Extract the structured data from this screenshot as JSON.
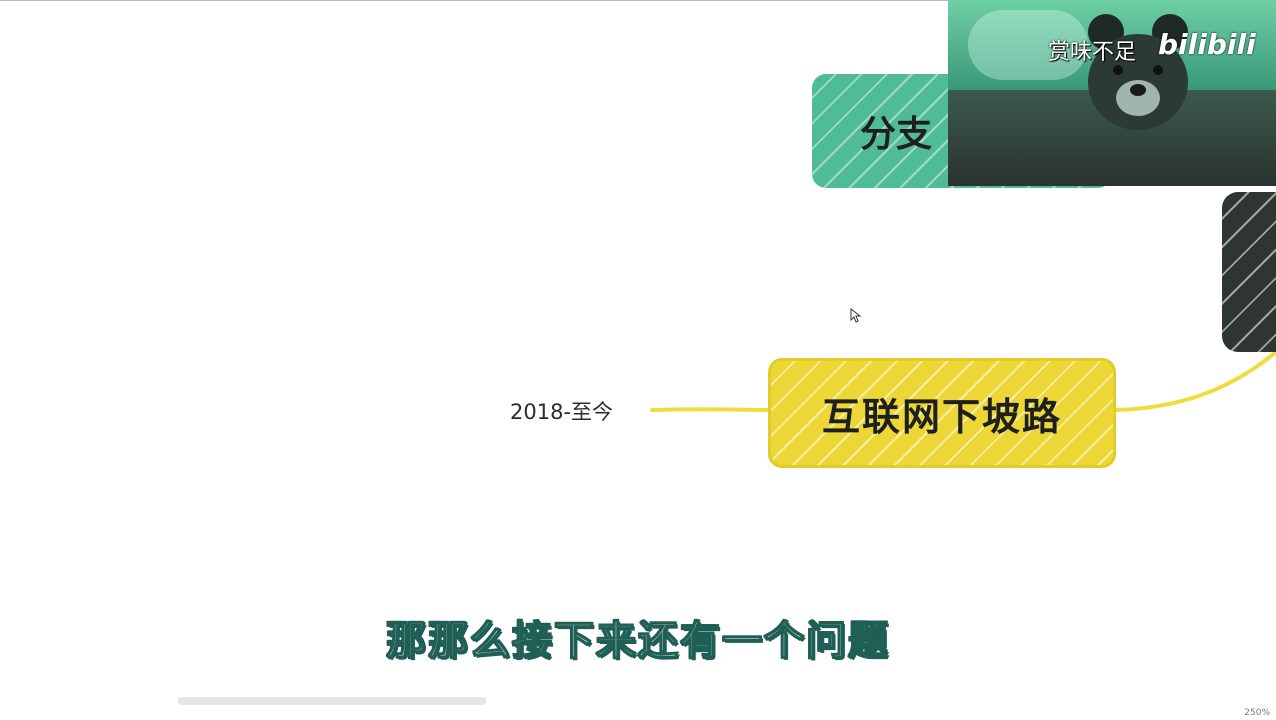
{
  "mindmap": {
    "main_node": {
      "label": "互联网下坡路",
      "color": "#ecd737"
    },
    "branch_label": "2018-至今",
    "top_node": {
      "label": "分支",
      "color": "#4fbc96"
    },
    "dark_node": {
      "color": "#2f3533"
    },
    "connector_color": "#f0dc3c"
  },
  "webcam": {
    "watermark_text": "赏味不足",
    "logo_text": "bilibili"
  },
  "subtitle": "那那么接下来还有一个问题",
  "status": {
    "zoom": "250%"
  }
}
